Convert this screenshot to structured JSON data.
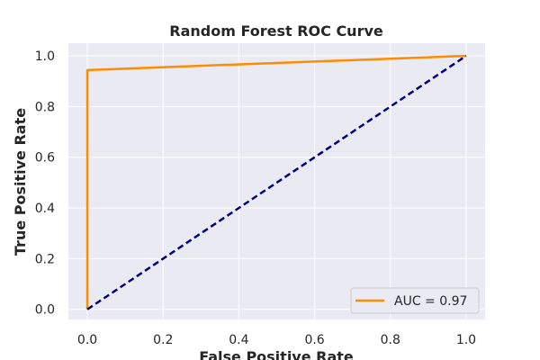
{
  "chart_data": {
    "type": "line",
    "title": "Random Forest ROC Curve",
    "xlabel": "False Positive Rate",
    "ylabel": "True Positive Rate",
    "xlim": [
      -0.05,
      1.05
    ],
    "ylim": [
      -0.04,
      1.05
    ],
    "x_ticks": [
      "0.0",
      "0.2",
      "0.4",
      "0.6",
      "0.8",
      "1.0"
    ],
    "y_ticks": [
      "0.0",
      "0.2",
      "0.4",
      "0.6",
      "0.8",
      "1.0"
    ],
    "grid": true,
    "legend_position": "lower right",
    "series": [
      {
        "name": "AUC = 0.97",
        "color": "#ff8c00",
        "style": "solid",
        "x": [
          0.0,
          0.0,
          1.0
        ],
        "y": [
          0.0,
          0.944,
          1.0
        ]
      },
      {
        "color": "#000080",
        "style": "dashed",
        "x": [
          0.0,
          1.0
        ],
        "y": [
          0.0,
          1.0
        ]
      }
    ]
  },
  "colors": {
    "plot_background": "#eaeaf2",
    "grid": "#ffffff",
    "text": "#262626"
  }
}
